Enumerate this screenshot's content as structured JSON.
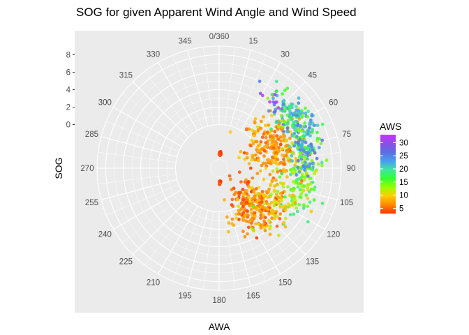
{
  "chart_data": {
    "type": "scatter",
    "coord": "polar",
    "title": "SOG for given Apparent Wind Angle and Wind Speed",
    "xlabel": "AWA",
    "ylabel": "SOG",
    "theta_ticks": [
      "0/360",
      "15",
      "30",
      "45",
      "60",
      "75",
      "90",
      "105",
      "120",
      "135",
      "150",
      "165",
      "180",
      "195",
      "210",
      "225",
      "240",
      "255",
      "270",
      "285",
      "300",
      "315",
      "330",
      "345"
    ],
    "r_ticks": [
      0,
      2,
      4,
      6,
      8
    ],
    "rlim": [
      -5,
      9
    ],
    "grid": true,
    "legend": {
      "title": "AWS",
      "position": "right",
      "ticks": [
        5,
        10,
        15,
        20,
        25,
        30
      ],
      "range": [
        3,
        33
      ],
      "colors": [
        "#ff3300",
        "#ff8a00",
        "#ffcc00",
        "#99ff00",
        "#33ff33",
        "#3fe6a0",
        "#4a9df0",
        "#5a6fe0",
        "#8a4fe8",
        "#cc33ff"
      ]
    },
    "series_clusters": [
      {
        "awa_center": 4,
        "awa_spread": 2,
        "sog_center": -3.4,
        "sog_spread": 0.2,
        "aws_center": 4,
        "aws_spread": 1,
        "n": 25
      },
      {
        "awa_center": 176,
        "awa_spread": 2,
        "sog_center": -3.4,
        "sog_spread": 0.2,
        "aws_center": 4,
        "aws_spread": 1,
        "n": 20
      },
      {
        "awa_center": 68,
        "awa_spread": 15,
        "sog_center": 1.8,
        "sog_spread": 1.6,
        "aws_center": 7,
        "aws_spread": 2,
        "n": 230
      },
      {
        "awa_center": 135,
        "awa_spread": 15,
        "sog_center": 1.2,
        "sog_spread": 1.5,
        "aws_center": 6,
        "aws_spread": 2,
        "n": 240
      },
      {
        "awa_center": 58,
        "awa_spread": 11,
        "sog_center": 5.6,
        "sog_spread": 1.0,
        "aws_center": 20,
        "aws_spread": 3.5,
        "n": 180
      },
      {
        "awa_center": 95,
        "awa_spread": 16,
        "sog_center": 4.6,
        "sog_spread": 1.0,
        "aws_center": 15,
        "aws_spread": 3,
        "n": 170
      },
      {
        "awa_center": 120,
        "awa_spread": 12,
        "sog_center": 2.8,
        "sog_spread": 1.3,
        "aws_center": 10,
        "aws_spread": 2,
        "n": 80
      },
      {
        "awa_center": 80,
        "awa_spread": 8,
        "sog_center": 5.0,
        "sog_spread": 0.6,
        "aws_center": 24,
        "aws_spread": 2,
        "n": 50
      },
      {
        "awa_center": 36,
        "awa_spread": 3,
        "sog_center": 4.8,
        "sog_spread": 0.4,
        "aws_center": 31,
        "aws_spread": 1.5,
        "n": 8
      }
    ]
  }
}
